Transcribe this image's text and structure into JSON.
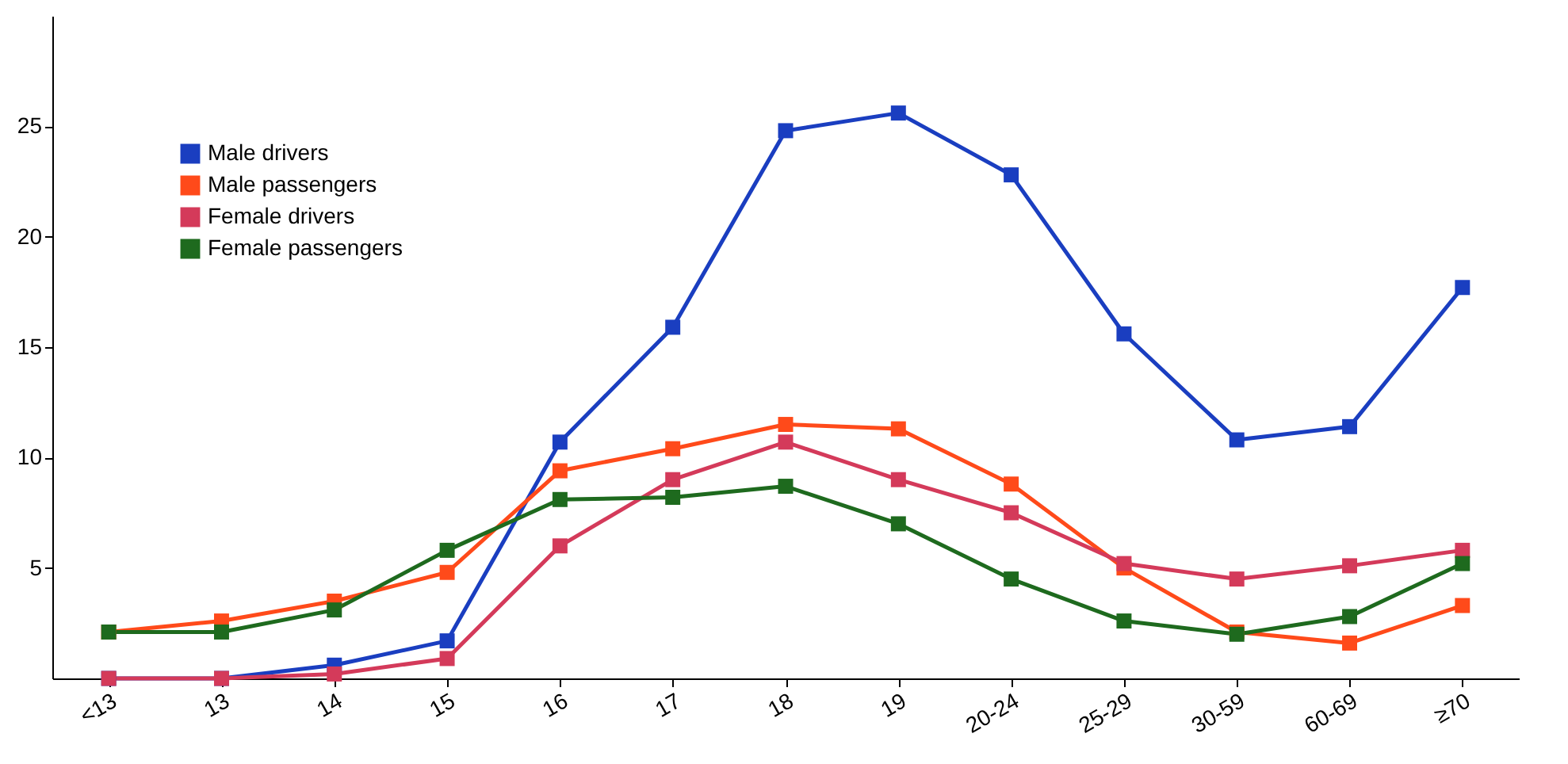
{
  "chart_data": {
    "type": "line",
    "categories": [
      "<13",
      "13",
      "14",
      "15",
      "16",
      "17",
      "18",
      "19",
      "20-24",
      "25-29",
      "30-59",
      "60-69",
      "≥70"
    ],
    "series": [
      {
        "name": "Male drivers",
        "color": "#1a3ec0",
        "values": [
          0,
          0,
          0.6,
          1.7,
          10.7,
          15.9,
          24.8,
          25.6,
          22.8,
          15.6,
          10.8,
          11.4,
          17.7
        ]
      },
      {
        "name": "Male passengers",
        "color": "#ff4a1a",
        "values": [
          2.1,
          2.6,
          3.5,
          4.8,
          9.4,
          10.4,
          11.5,
          11.3,
          8.8,
          5.0,
          2.1,
          1.6,
          3.3
        ]
      },
      {
        "name": "Female drivers",
        "color": "#d43a5a",
        "values": [
          0,
          0,
          0.2,
          0.9,
          6.0,
          9.0,
          10.7,
          9.0,
          7.5,
          5.2,
          4.5,
          5.1,
          5.8
        ]
      },
      {
        "name": "Female passengers",
        "color": "#1e6a1e",
        "values": [
          2.1,
          2.1,
          3.1,
          5.8,
          8.1,
          8.2,
          8.7,
          7.0,
          4.5,
          2.6,
          2.0,
          2.8,
          5.2
        ]
      }
    ],
    "ylim": [
      0,
      30
    ],
    "yticks": [
      5,
      10,
      15,
      20,
      25
    ],
    "grid": false,
    "legend": "top left",
    "marker": "square",
    "line_style": "solid"
  }
}
